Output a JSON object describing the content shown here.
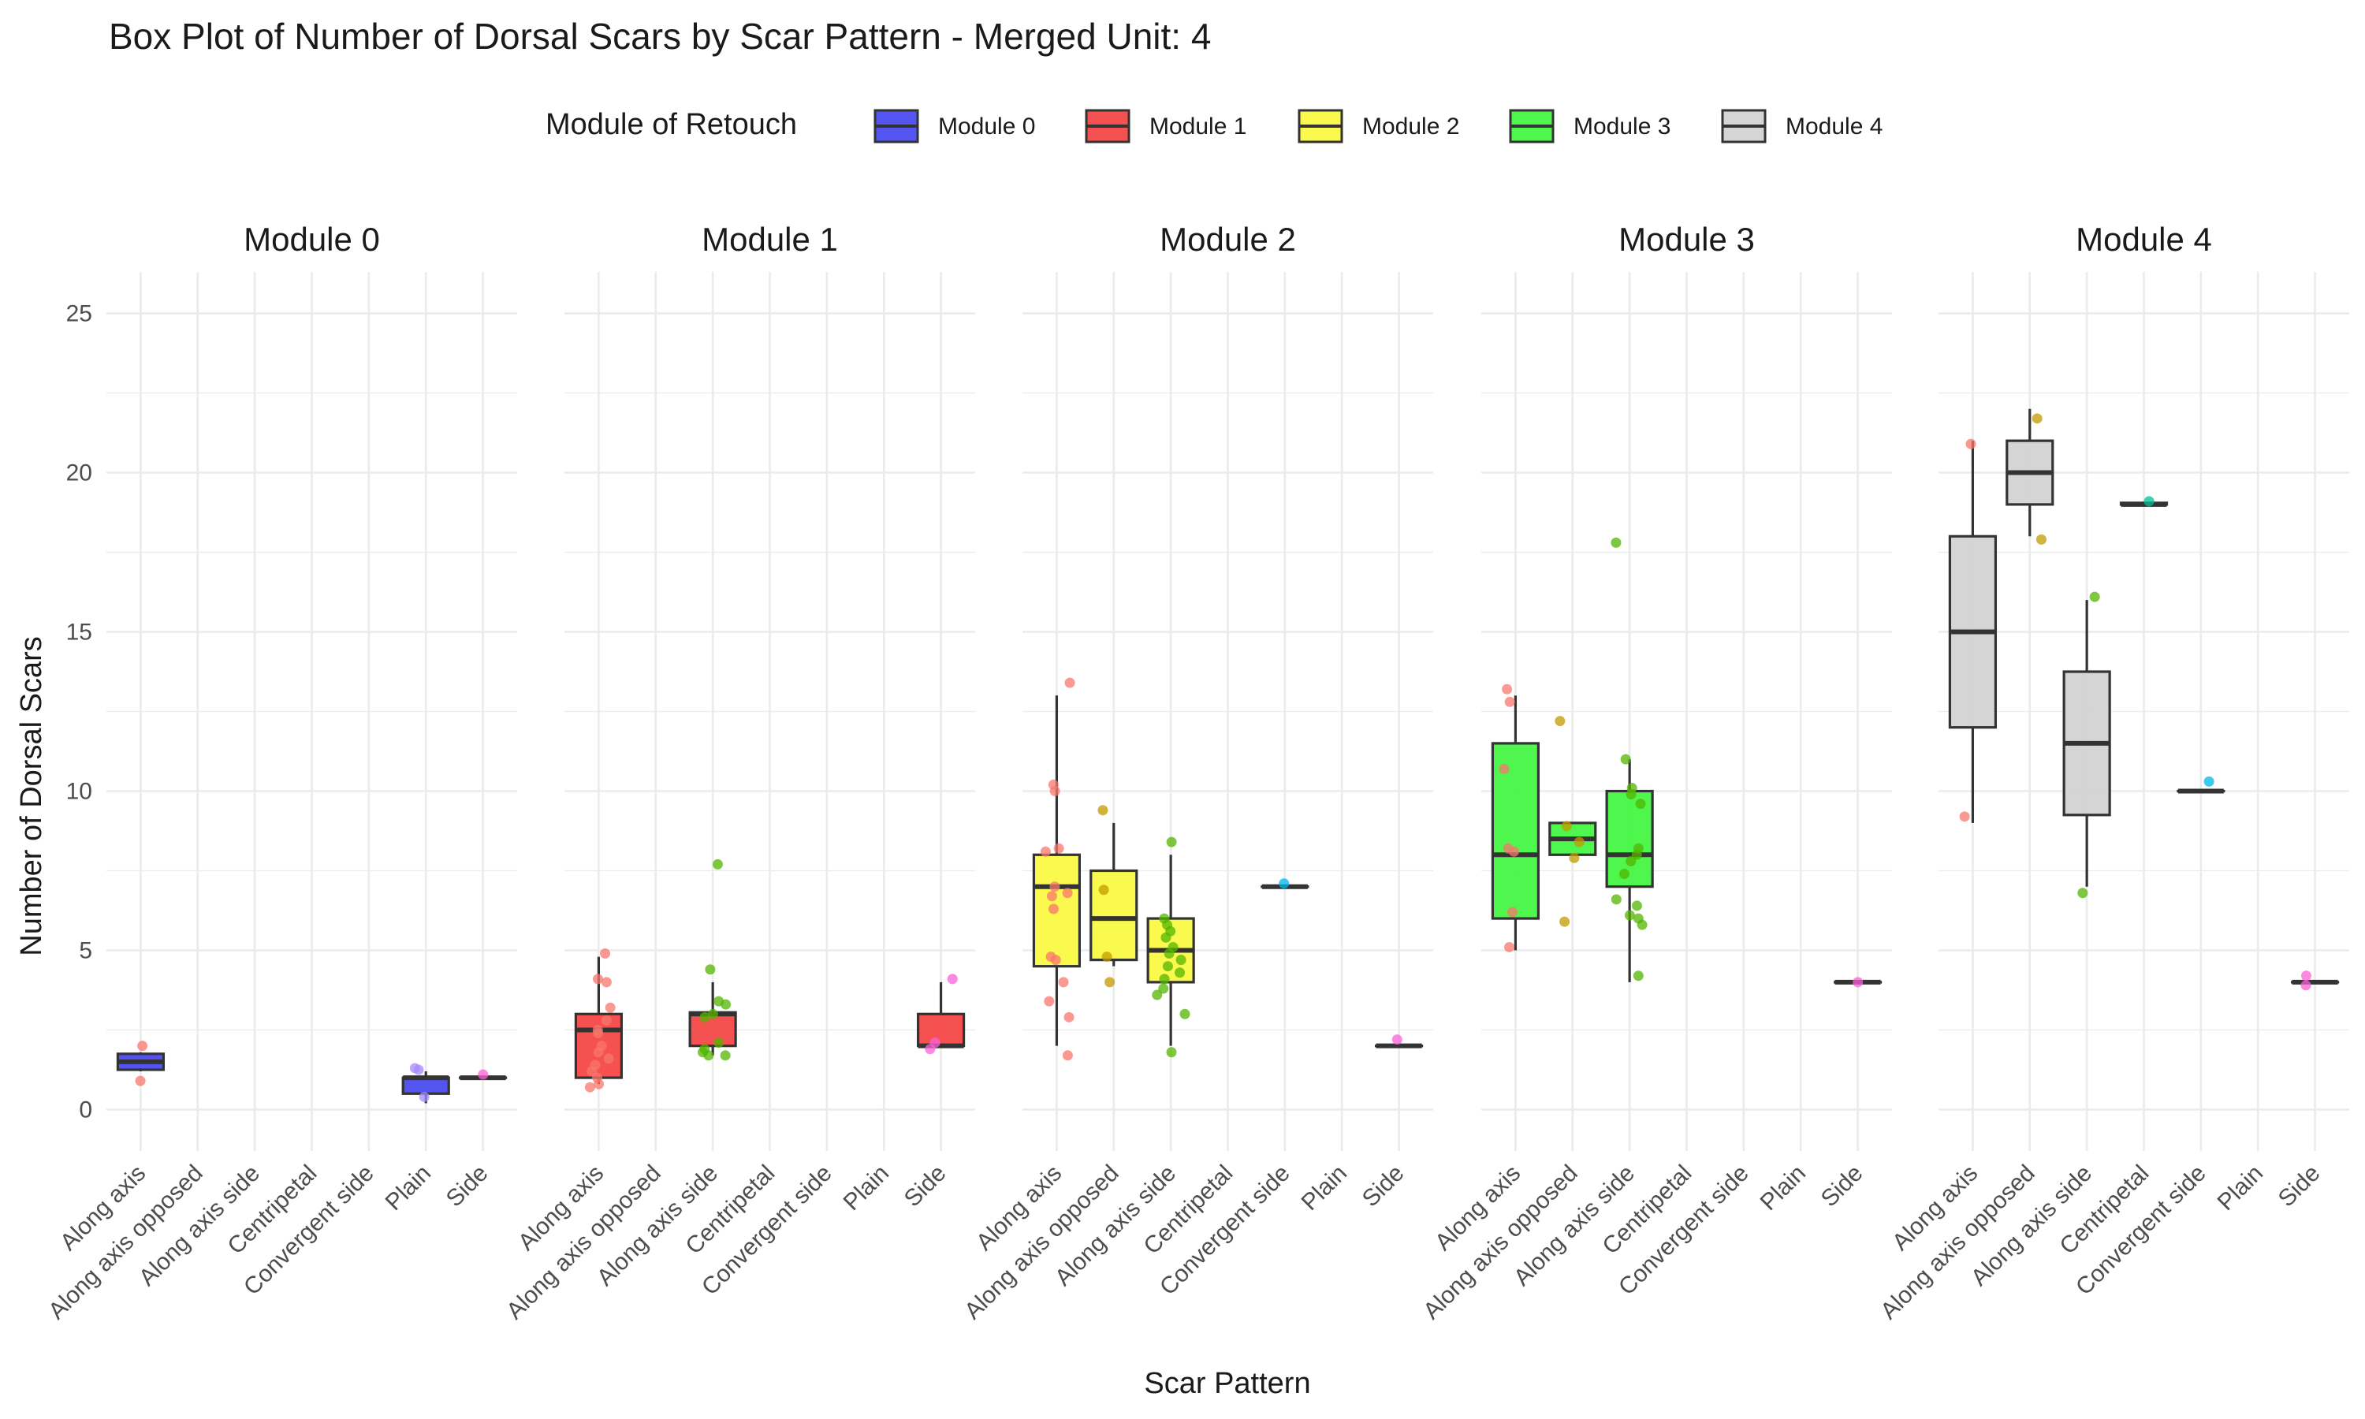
{
  "chart_data": {
    "type": "box",
    "title": "Box Plot of Number of Dorsal Scars by Scar Pattern - Merged Unit: 4",
    "xlabel": "Scar Pattern",
    "ylabel": "Number of Dorsal Scars",
    "ylim": [
      -1.3,
      26.3
    ],
    "yticks": [
      0,
      5,
      10,
      15,
      20,
      25
    ],
    "grid": true,
    "legend": {
      "title": "Module of Retouch",
      "placement": "top",
      "entries": [
        {
          "label": "Module 0",
          "color": "#4b4bf0"
        },
        {
          "label": "Module 1",
          "color": "#f54848"
        },
        {
          "label": "Module 2",
          "color": "#fafa45"
        },
        {
          "label": "Module 3",
          "color": "#45f545"
        },
        {
          "label": "Module 4",
          "color": "#d3d3d3"
        }
      ]
    },
    "categories": [
      "Along axis",
      "Along axis opposed",
      "Along axis side",
      "Centripetal",
      "Convergent side",
      "Plain",
      "Side"
    ],
    "point_colors": {
      "Along axis": "#f8766d",
      "Along axis opposed": "#c49a00",
      "Along axis side": "#53b400",
      "Centripetal": "#00c094",
      "Convergent side": "#00b6eb",
      "Plain": "#a58aff",
      "Side": "#fb61d7"
    },
    "panels": [
      {
        "title": "Module 0",
        "fill": "#4b4bf0",
        "boxes": [
          {
            "category": "Along axis",
            "min": 1.2,
            "q1": 1.25,
            "median": 1.5,
            "q3": 1.75,
            "max": 1.8
          },
          {
            "category": "Plain",
            "min": 0.2,
            "q1": 0.5,
            "median": 1.0,
            "q3": 1.0,
            "max": 1.2
          },
          {
            "category": "Side",
            "min": 1.0,
            "q1": 1.0,
            "median": 1.0,
            "q3": 1.0,
            "max": 1.0
          }
        ],
        "points": [
          {
            "category": "Along axis",
            "y": [
              0.9,
              2.0
            ]
          },
          {
            "category": "Plain",
            "y": [
              1.3,
              1.25,
              0.4
            ]
          },
          {
            "category": "Side",
            "y": [
              1.1
            ]
          }
        ]
      },
      {
        "title": "Module 1",
        "fill": "#f54848",
        "boxes": [
          {
            "category": "Along axis",
            "min": 0.8,
            "q1": 1.0,
            "median": 2.5,
            "q3": 3.0,
            "max": 4.8
          },
          {
            "category": "Along axis side",
            "min": 1.7,
            "q1": 2.0,
            "median": 3.0,
            "q3": 3.05,
            "max": 4.0
          },
          {
            "category": "Side",
            "min": 2.0,
            "q1": 2.0,
            "median": 2.0,
            "q3": 3.0,
            "max": 4.0
          }
        ],
        "points": [
          {
            "category": "Along axis",
            "y": [
              4.9,
              4.1,
              4.0,
              3.2,
              2.8,
              2.5,
              2.4,
              2.0,
              1.8,
              1.6,
              1.4,
              1.2,
              1.0,
              0.8,
              0.7
            ]
          },
          {
            "category": "Along axis side",
            "y": [
              7.7,
              4.4,
              3.4,
              3.3,
              3.0,
              2.9,
              2.1,
              1.9,
              1.8,
              1.7,
              1.7
            ]
          },
          {
            "category": "Side",
            "y": [
              4.1,
              2.1,
              1.9
            ]
          }
        ]
      },
      {
        "title": "Module 2",
        "fill": "#fafa45",
        "boxes": [
          {
            "category": "Along axis",
            "min": 2.0,
            "q1": 4.5,
            "median": 7.0,
            "q3": 8.0,
            "max": 13.0
          },
          {
            "category": "Along axis opposed",
            "min": 4.5,
            "q1": 4.7,
            "median": 6.0,
            "q3": 7.5,
            "max": 9.0
          },
          {
            "category": "Along axis side",
            "min": 2.0,
            "q1": 4.0,
            "median": 5.0,
            "q3": 6.0,
            "max": 8.0
          },
          {
            "category": "Convergent side",
            "min": 7.0,
            "q1": 7.0,
            "median": 7.0,
            "q3": 7.0,
            "max": 7.0
          },
          {
            "category": "Side",
            "min": 2.0,
            "q1": 2.0,
            "median": 2.0,
            "q3": 2.0,
            "max": 2.0
          }
        ],
        "points": [
          {
            "category": "Along axis",
            "y": [
              13.4,
              10.2,
              10.0,
              8.2,
              8.1,
              7.0,
              6.8,
              6.7,
              6.3,
              4.8,
              4.7,
              4.0,
              3.4,
              2.9,
              1.7
            ]
          },
          {
            "category": "Along axis opposed",
            "y": [
              9.4,
              6.9,
              4.8,
              4.0
            ]
          },
          {
            "category": "Along axis side",
            "y": [
              8.4,
              6.0,
              5.8,
              5.6,
              5.4,
              5.1,
              4.9,
              4.7,
              4.5,
              4.3,
              4.1,
              3.8,
              3.6,
              3.0,
              1.8
            ]
          },
          {
            "category": "Convergent side",
            "y": [
              7.1
            ]
          },
          {
            "category": "Side",
            "y": [
              2.2
            ]
          }
        ]
      },
      {
        "title": "Module 3",
        "fill": "#45f545",
        "boxes": [
          {
            "category": "Along axis",
            "min": 5.0,
            "q1": 6.0,
            "median": 8.0,
            "q3": 11.5,
            "max": 13.0
          },
          {
            "category": "Along axis opposed",
            "min": 8.0,
            "q1": 8.0,
            "median": 8.5,
            "q3": 9.0,
            "max": 9.0
          },
          {
            "category": "Along axis side",
            "min": 4.0,
            "q1": 7.0,
            "median": 8.0,
            "q3": 10.0,
            "max": 11.0
          },
          {
            "category": "Side",
            "min": 4.0,
            "q1": 4.0,
            "median": 4.0,
            "q3": 4.0,
            "max": 4.0
          }
        ],
        "points": [
          {
            "category": "Along axis",
            "y": [
              13.2,
              12.8,
              10.7,
              8.2,
              8.1,
              6.2,
              5.1
            ]
          },
          {
            "category": "Along axis opposed",
            "y": [
              12.2,
              8.9,
              8.4,
              7.9,
              5.9
            ]
          },
          {
            "category": "Along axis side",
            "y": [
              17.8,
              11.0,
              10.1,
              9.9,
              9.6,
              8.2,
              8.0,
              7.8,
              7.4,
              6.6,
              6.4,
              6.1,
              6.0,
              5.8,
              4.2
            ]
          },
          {
            "category": "Side",
            "y": [
              4.0
            ]
          }
        ]
      },
      {
        "title": "Module 4",
        "fill": "#d3d3d3",
        "boxes": [
          {
            "category": "Along axis",
            "min": 9.0,
            "q1": 12.0,
            "median": 15.0,
            "q3": 18.0,
            "max": 21.0
          },
          {
            "category": "Along axis opposed",
            "min": 18.0,
            "q1": 19.0,
            "median": 20.0,
            "q3": 21.0,
            "max": 22.0
          },
          {
            "category": "Along axis side",
            "min": 7.0,
            "q1": 9.25,
            "median": 11.5,
            "q3": 13.75,
            "max": 16.0
          },
          {
            "category": "Centripetal",
            "min": 19.0,
            "q1": 19.0,
            "median": 19.0,
            "q3": 19.05,
            "max": 19.05
          },
          {
            "category": "Convergent side",
            "min": 10.0,
            "q1": 10.0,
            "median": 10.0,
            "q3": 10.0,
            "max": 10.0
          },
          {
            "category": "Side",
            "min": 4.0,
            "q1": 4.0,
            "median": 4.0,
            "q3": 4.0,
            "max": 4.0
          }
        ],
        "points": [
          {
            "category": "Along axis",
            "y": [
              20.9,
              9.2
            ]
          },
          {
            "category": "Along axis opposed",
            "y": [
              21.7,
              17.9
            ]
          },
          {
            "category": "Along axis side",
            "y": [
              16.1,
              6.8
            ]
          },
          {
            "category": "Centripetal",
            "y": [
              19.1
            ]
          },
          {
            "category": "Convergent side",
            "y": [
              10.3
            ]
          },
          {
            "category": "Side",
            "y": [
              4.2,
              3.9
            ]
          }
        ]
      }
    ]
  }
}
